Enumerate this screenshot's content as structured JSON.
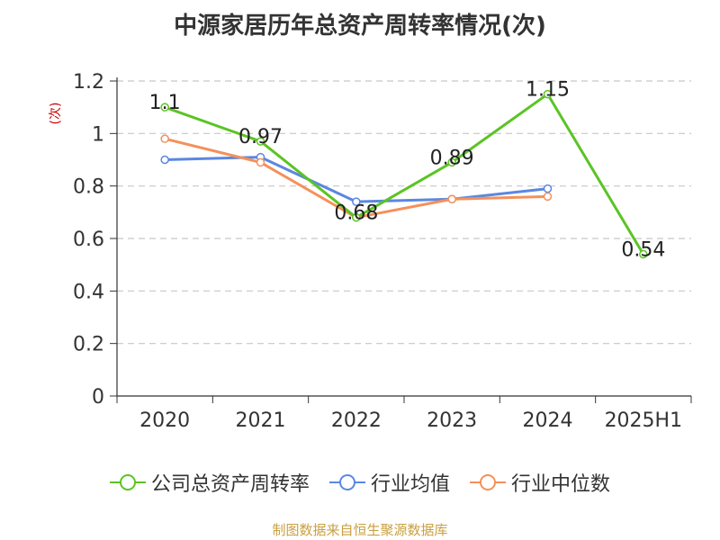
{
  "title": "中源家居历年总资产周转率情况(次)",
  "source": "制图数据来自恒生聚源数据库",
  "chart_data": {
    "type": "line",
    "categories": [
      "2020",
      "2021",
      "2022",
      "2023",
      "2024",
      "2025H1"
    ],
    "ylabel": "(次)",
    "ylim": [
      0,
      1.2
    ],
    "yticks": [
      0,
      0.2,
      0.4,
      0.6,
      0.8,
      1,
      1.2
    ],
    "ytick_labels": [
      "0",
      "0.2",
      "0.4",
      "0.6",
      "0.8",
      "1",
      "1.2"
    ],
    "grid": true,
    "legend_position": "bottom",
    "series": [
      {
        "name": "公司总资产周转率",
        "color": "#5bc424",
        "values": [
          1.1,
          0.97,
          0.68,
          0.89,
          1.15,
          0.54
        ],
        "labels": [
          "1.1",
          "0.97",
          "0.68",
          "0.89",
          "1.15",
          "0.54"
        ]
      },
      {
        "name": "行业均值",
        "color": "#5b87e0",
        "values": [
          0.9,
          0.91,
          0.74,
          0.75,
          0.79,
          null
        ]
      },
      {
        "name": "行业中位数",
        "color": "#f5905a",
        "values": [
          0.98,
          0.89,
          0.68,
          0.75,
          0.76,
          null
        ]
      }
    ]
  }
}
